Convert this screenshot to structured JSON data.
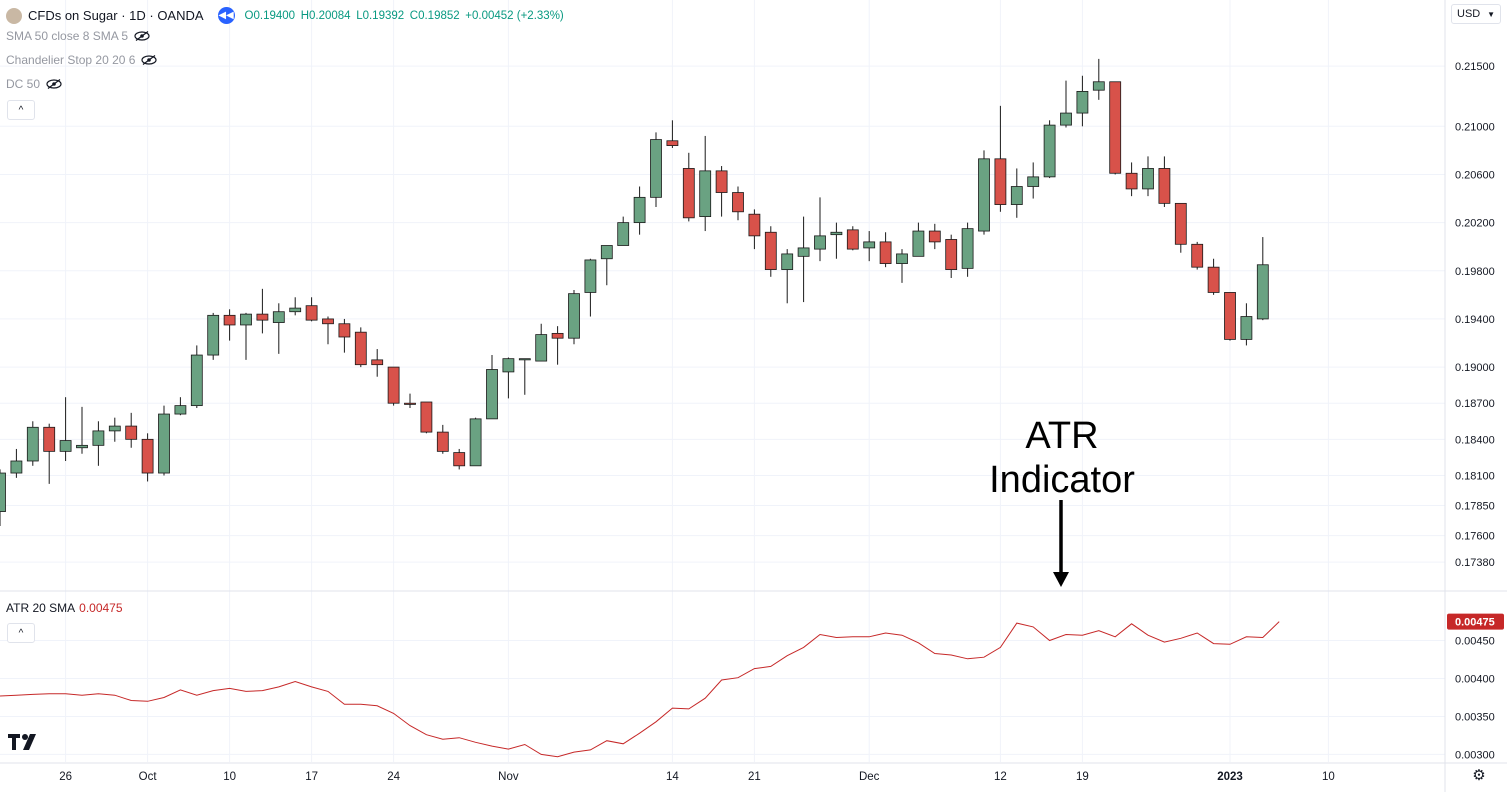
{
  "header": {
    "title": "CFDs on Sugar · 1D · OANDA",
    "ohlc": {
      "open": "O0.19400",
      "high": "H0.20084",
      "low": "L0.19392",
      "close": "C0.19852",
      "change": "+0.00452 (+2.33%)"
    }
  },
  "indicators": [
    {
      "label": "SMA 50 close 8 SMA 5"
    },
    {
      "label": "Chandelier Stop 20 20 6"
    },
    {
      "label": "DC 50"
    }
  ],
  "atr_label": {
    "name": "ATR 20 SMA",
    "value": "0.00475"
  },
  "currency": "USD",
  "annotation": {
    "line1": "ATR",
    "line2": "Indicator"
  },
  "colors": {
    "up": "#6aa282",
    "down": "#d8524a",
    "atr": "#c62828",
    "grid": "#f0f3fa",
    "axis": "#131722"
  },
  "icons": {
    "tradingview_logo": "tradingview-logo-icon",
    "settings": "gear-icon",
    "replay": "rewind-icon",
    "visibility": "eye-off-icon"
  },
  "chart_data": [
    {
      "type": "candlestick",
      "title": "CFDs on Sugar · 1D · OANDA",
      "ylim": [
        0.1719,
        0.218
      ],
      "y_ticks": [
        "0.21500",
        "0.21000",
        "0.20600",
        "0.20200",
        "0.19800",
        "0.19400",
        "0.19000",
        "0.18700",
        "0.18400",
        "0.18100",
        "0.17850",
        "0.17600",
        "0.17380"
      ],
      "x_ticks": [
        "26",
        "Oct",
        "10",
        "17",
        "24",
        "Nov",
        "14",
        "21",
        "Dec",
        "12",
        "19",
        "2023",
        "10"
      ],
      "series": [
        {
          "o": 0.178,
          "h": 0.1815,
          "l": 0.1768,
          "c": 0.1812
        },
        {
          "o": 0.1812,
          "h": 0.1832,
          "l": 0.1808,
          "c": 0.1822
        },
        {
          "o": 0.1822,
          "h": 0.1855,
          "l": 0.1818,
          "c": 0.185
        },
        {
          "o": 0.185,
          "h": 0.1853,
          "l": 0.1803,
          "c": 0.183
        },
        {
          "o": 0.183,
          "h": 0.1875,
          "l": 0.1822,
          "c": 0.1839
        },
        {
          "o": 0.1833,
          "h": 0.1867,
          "l": 0.1828,
          "c": 0.1835
        },
        {
          "o": 0.1835,
          "h": 0.1855,
          "l": 0.1818,
          "c": 0.1847
        },
        {
          "o": 0.1847,
          "h": 0.1858,
          "l": 0.1838,
          "c": 0.1851
        },
        {
          "o": 0.1851,
          "h": 0.1862,
          "l": 0.1833,
          "c": 0.184
        },
        {
          "o": 0.184,
          "h": 0.1845,
          "l": 0.1805,
          "c": 0.1812
        },
        {
          "o": 0.1812,
          "h": 0.1868,
          "l": 0.181,
          "c": 0.1861
        },
        {
          "o": 0.1861,
          "h": 0.1875,
          "l": 0.186,
          "c": 0.1868
        },
        {
          "o": 0.1868,
          "h": 0.1918,
          "l": 0.1866,
          "c": 0.191
        },
        {
          "o": 0.191,
          "h": 0.1945,
          "l": 0.1906,
          "c": 0.1943
        },
        {
          "o": 0.1943,
          "h": 0.1948,
          "l": 0.1922,
          "c": 0.1935
        },
        {
          "o": 0.1935,
          "h": 0.1945,
          "l": 0.1906,
          "c": 0.1944
        },
        {
          "o": 0.1944,
          "h": 0.1965,
          "l": 0.1928,
          "c": 0.1939
        },
        {
          "o": 0.1937,
          "h": 0.1953,
          "l": 0.1911,
          "c": 0.1946
        },
        {
          "o": 0.1946,
          "h": 0.1958,
          "l": 0.1943,
          "c": 0.1949
        },
        {
          "o": 0.1951,
          "h": 0.1958,
          "l": 0.1938,
          "c": 0.1939
        },
        {
          "o": 0.194,
          "h": 0.1942,
          "l": 0.1919,
          "c": 0.1936
        },
        {
          "o": 0.1936,
          "h": 0.194,
          "l": 0.1912,
          "c": 0.1925
        },
        {
          "o": 0.1929,
          "h": 0.1933,
          "l": 0.19,
          "c": 0.1902
        },
        {
          "o": 0.1906,
          "h": 0.1915,
          "l": 0.1892,
          "c": 0.1902
        },
        {
          "o": 0.19,
          "h": 0.19,
          "l": 0.1868,
          "c": 0.187
        },
        {
          "o": 0.187,
          "h": 0.1878,
          "l": 0.1866,
          "c": 0.1869
        },
        {
          "o": 0.1871,
          "h": 0.1871,
          "l": 0.1845,
          "c": 0.1846
        },
        {
          "o": 0.1846,
          "h": 0.1852,
          "l": 0.1828,
          "c": 0.183
        },
        {
          "o": 0.1829,
          "h": 0.1832,
          "l": 0.1815,
          "c": 0.1818
        },
        {
          "o": 0.1818,
          "h": 0.1858,
          "l": 0.1818,
          "c": 0.1857
        },
        {
          "o": 0.1857,
          "h": 0.191,
          "l": 0.1857,
          "c": 0.1898
        },
        {
          "o": 0.1896,
          "h": 0.1908,
          "l": 0.1874,
          "c": 0.1907
        },
        {
          "o": 0.1906,
          "h": 0.1907,
          "l": 0.1877,
          "c": 0.1907
        },
        {
          "o": 0.1905,
          "h": 0.1936,
          "l": 0.1905,
          "c": 0.1927
        },
        {
          "o": 0.1928,
          "h": 0.1934,
          "l": 0.1902,
          "c": 0.1924
        },
        {
          "o": 0.1924,
          "h": 0.1964,
          "l": 0.1919,
          "c": 0.1961
        },
        {
          "o": 0.1962,
          "h": 0.199,
          "l": 0.1942,
          "c": 0.1989
        },
        {
          "o": 0.199,
          "h": 0.2001,
          "l": 0.1968,
          "c": 0.2001
        },
        {
          "o": 0.2001,
          "h": 0.2025,
          "l": 0.2001,
          "c": 0.202
        },
        {
          "o": 0.202,
          "h": 0.205,
          "l": 0.201,
          "c": 0.2041
        },
        {
          "o": 0.2041,
          "h": 0.2095,
          "l": 0.2033,
          "c": 0.2089
        },
        {
          "o": 0.2088,
          "h": 0.2105,
          "l": 0.2082,
          "c": 0.2084
        },
        {
          "o": 0.2065,
          "h": 0.2078,
          "l": 0.2021,
          "c": 0.2024
        },
        {
          "o": 0.2025,
          "h": 0.2092,
          "l": 0.2013,
          "c": 0.2063
        },
        {
          "o": 0.2063,
          "h": 0.2067,
          "l": 0.2025,
          "c": 0.2045
        },
        {
          "o": 0.2045,
          "h": 0.205,
          "l": 0.2022,
          "c": 0.2029
        },
        {
          "o": 0.2027,
          "h": 0.2031,
          "l": 0.1998,
          "c": 0.2009
        },
        {
          "o": 0.2012,
          "h": 0.2017,
          "l": 0.1975,
          "c": 0.1981
        },
        {
          "o": 0.1981,
          "h": 0.1998,
          "l": 0.1953,
          "c": 0.1994
        },
        {
          "o": 0.1992,
          "h": 0.2025,
          "l": 0.1954,
          "c": 0.1999
        },
        {
          "o": 0.1998,
          "h": 0.2041,
          "l": 0.1988,
          "c": 0.2009
        },
        {
          "o": 0.201,
          "h": 0.202,
          "l": 0.199,
          "c": 0.2012
        },
        {
          "o": 0.2014,
          "h": 0.2017,
          "l": 0.1997,
          "c": 0.1998
        },
        {
          "o": 0.1999,
          "h": 0.2013,
          "l": 0.1988,
          "c": 0.2004
        },
        {
          "o": 0.2004,
          "h": 0.2012,
          "l": 0.1983,
          "c": 0.1986
        },
        {
          "o": 0.1986,
          "h": 0.1998,
          "l": 0.197,
          "c": 0.1994
        },
        {
          "o": 0.1992,
          "h": 0.202,
          "l": 0.1992,
          "c": 0.2013
        },
        {
          "o": 0.2013,
          "h": 0.2019,
          "l": 0.1998,
          "c": 0.2004
        },
        {
          "o": 0.2006,
          "h": 0.201,
          "l": 0.1974,
          "c": 0.1981
        },
        {
          "o": 0.1982,
          "h": 0.202,
          "l": 0.1975,
          "c": 0.2015
        },
        {
          "o": 0.2013,
          "h": 0.208,
          "l": 0.201,
          "c": 0.2073
        },
        {
          "o": 0.2073,
          "h": 0.2117,
          "l": 0.2029,
          "c": 0.2035
        },
        {
          "o": 0.2035,
          "h": 0.2065,
          "l": 0.2024,
          "c": 0.205
        },
        {
          "o": 0.205,
          "h": 0.207,
          "l": 0.204,
          "c": 0.2058
        },
        {
          "o": 0.2058,
          "h": 0.2105,
          "l": 0.2057,
          "c": 0.2101
        },
        {
          "o": 0.2101,
          "h": 0.2138,
          "l": 0.2099,
          "c": 0.2111
        },
        {
          "o": 0.2111,
          "h": 0.2142,
          "l": 0.21,
          "c": 0.2129
        },
        {
          "o": 0.213,
          "h": 0.2156,
          "l": 0.2122,
          "c": 0.2137
        },
        {
          "o": 0.2137,
          "h": 0.2137,
          "l": 0.206,
          "c": 0.2061
        },
        {
          "o": 0.2061,
          "h": 0.207,
          "l": 0.2042,
          "c": 0.2048
        },
        {
          "o": 0.2048,
          "h": 0.2075,
          "l": 0.2042,
          "c": 0.2065
        },
        {
          "o": 0.2065,
          "h": 0.2075,
          "l": 0.2033,
          "c": 0.2036
        },
        {
          "o": 0.2036,
          "h": 0.2036,
          "l": 0.1995,
          "c": 0.2002
        },
        {
          "o": 0.2002,
          "h": 0.2004,
          "l": 0.1981,
          "c": 0.1983
        },
        {
          "o": 0.1983,
          "h": 0.199,
          "l": 0.196,
          "c": 0.1962
        },
        {
          "o": 0.1962,
          "h": 0.1962,
          "l": 0.1922,
          "c": 0.1923
        },
        {
          "o": 0.1923,
          "h": 0.1953,
          "l": 0.1918,
          "c": 0.1942
        },
        {
          "o": 0.194,
          "h": 0.2008,
          "l": 0.1939,
          "c": 0.1985
        }
      ]
    },
    {
      "type": "line",
      "title": "ATR 20 SMA",
      "ylim": [
        0.0029,
        0.0051
      ],
      "y_ticks": [
        "0.00475",
        "0.00450",
        "0.00400",
        "0.00350",
        "0.00300"
      ],
      "series": [
        {
          "name": "ATR 20 SMA",
          "values": [
            0.00377,
            0.00378,
            0.00379,
            0.0038,
            0.0038,
            0.00378,
            0.0038,
            0.00378,
            0.00371,
            0.0037,
            0.00375,
            0.00385,
            0.00378,
            0.00384,
            0.00387,
            0.00383,
            0.00384,
            0.00389,
            0.00396,
            0.00389,
            0.00383,
            0.00366,
            0.00366,
            0.00364,
            0.00354,
            0.00338,
            0.00326,
            0.0032,
            0.00322,
            0.00316,
            0.00311,
            0.00307,
            0.00313,
            0.003,
            0.00297,
            0.00303,
            0.00306,
            0.00318,
            0.00314,
            0.00328,
            0.00343,
            0.00361,
            0.0036,
            0.00374,
            0.00398,
            0.00401,
            0.00413,
            0.00416,
            0.0043,
            0.00441,
            0.00458,
            0.00454,
            0.00455,
            0.00455,
            0.0046,
            0.00457,
            0.00447,
            0.00433,
            0.00431,
            0.00426,
            0.00428,
            0.00441,
            0.00473,
            0.00468,
            0.0045,
            0.00458,
            0.00457,
            0.00463,
            0.00455,
            0.00472,
            0.00457,
            0.00448,
            0.00453,
            0.0046,
            0.00446,
            0.00445,
            0.00455,
            0.00454,
            0.00475
          ]
        }
      ]
    }
  ]
}
